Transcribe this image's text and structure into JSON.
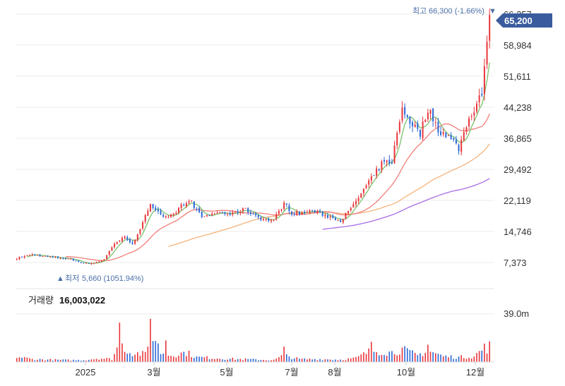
{
  "chart_data": {
    "type": "candlestick",
    "colors": {
      "up": "#e8353b",
      "down": "#2a67d6",
      "grid": "#ececec",
      "ma5": "#79c26b",
      "ma20": "#f17e79",
      "ma60": "#f5b37a",
      "ma120": "#a86be6",
      "badge": "#3a5c9e"
    },
    "y_ticks": [
      "7,373",
      "14,746",
      "22,119",
      "29,492",
      "36,865",
      "44,238",
      "51,611",
      "58,984",
      "66,357"
    ],
    "x_ticks": [
      "2025",
      "3월",
      "5월",
      "7월",
      "8월",
      "10월",
      "12월"
    ],
    "ylim": [
      3500,
      67800
    ],
    "high_annotation": {
      "label": "최고",
      "value": "66,300 (-1.66%)",
      "marker": "▼"
    },
    "low_annotation": {
      "label": "최저",
      "value": "5,660 (1051.94%)",
      "marker": "▲"
    },
    "last_price": "65,200",
    "volume": {
      "label": "거래량",
      "value": "16,003,022",
      "axis_tick": "39.0m"
    },
    "price_path": [
      [
        0,
        8400
      ],
      [
        6,
        9300
      ],
      [
        12,
        8700
      ],
      [
        20,
        8300
      ],
      [
        27,
        7100
      ],
      [
        30,
        7300
      ],
      [
        34,
        8100
      ],
      [
        38,
        12000
      ],
      [
        42,
        13300
      ],
      [
        45,
        12000
      ],
      [
        48,
        15000
      ],
      [
        52,
        21500
      ],
      [
        55,
        19500
      ],
      [
        58,
        18000
      ],
      [
        62,
        18800
      ],
      [
        64,
        21000
      ],
      [
        68,
        21800
      ],
      [
        70,
        19700
      ],
      [
        73,
        18000
      ],
      [
        78,
        19300
      ],
      [
        84,
        18800
      ],
      [
        88,
        20200
      ],
      [
        92,
        18900
      ],
      [
        96,
        17600
      ],
      [
        100,
        17400
      ],
      [
        104,
        21500
      ],
      [
        107,
        19200
      ],
      [
        111,
        19100
      ],
      [
        115,
        19700
      ],
      [
        118,
        19000
      ],
      [
        122,
        18200
      ],
      [
        126,
        17400
      ],
      [
        130,
        20000
      ],
      [
        134,
        23800
      ],
      [
        138,
        27200
      ],
      [
        142,
        30800
      ],
      [
        146,
        31500
      ],
      [
        150,
        44000
      ],
      [
        153,
        41000
      ],
      [
        157,
        38000
      ],
      [
        160,
        44000
      ],
      [
        164,
        39000
      ],
      [
        167,
        37800
      ],
      [
        170,
        36000
      ],
      [
        172,
        34500
      ],
      [
        175,
        40000
      ],
      [
        178,
        44000
      ],
      [
        181,
        48000
      ],
      [
        183,
        60000
      ],
      [
        184,
        65200
      ]
    ],
    "volume_path": [
      [
        0,
        0.11
      ],
      [
        6,
        0.06
      ],
      [
        12,
        0.05
      ],
      [
        20,
        0.04
      ],
      [
        26,
        0.04
      ],
      [
        32,
        0.08
      ],
      [
        37,
        0.06
      ],
      [
        40,
        0.4
      ],
      [
        44,
        0.2
      ],
      [
        50,
        0.16
      ],
      [
        53,
        0.6
      ],
      [
        56,
        0.2
      ],
      [
        60,
        0.14
      ],
      [
        66,
        0.2
      ],
      [
        70,
        0.1
      ],
      [
        78,
        0.08
      ],
      [
        86,
        0.06
      ],
      [
        94,
        0.05
      ],
      [
        100,
        0.04
      ],
      [
        104,
        0.14
      ],
      [
        110,
        0.06
      ],
      [
        118,
        0.06
      ],
      [
        126,
        0.05
      ],
      [
        132,
        0.08
      ],
      [
        138,
        0.24
      ],
      [
        146,
        0.2
      ],
      [
        150,
        0.26
      ],
      [
        156,
        0.14
      ],
      [
        160,
        0.24
      ],
      [
        166,
        0.12
      ],
      [
        172,
        0.1
      ],
      [
        178,
        0.12
      ],
      [
        182,
        0.3
      ],
      [
        184,
        0.26
      ]
    ],
    "spikes": [
      [
        40,
        0.82
      ],
      [
        52,
        0.9
      ],
      [
        58,
        0.45
      ],
      [
        104,
        0.32
      ],
      [
        138,
        0.42
      ],
      [
        160,
        0.36
      ],
      [
        184,
        0.43
      ]
    ],
    "ma120_start": 80
  }
}
